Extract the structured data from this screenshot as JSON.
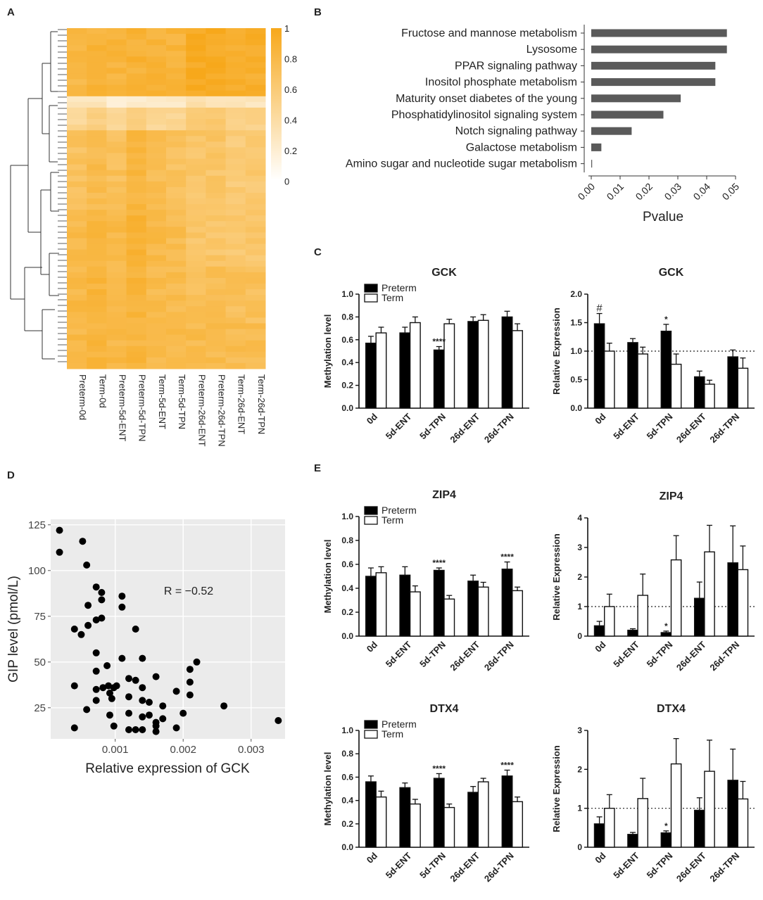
{
  "colors": {
    "heat_high": "#f7a81b",
    "heat_low": "#ffffff",
    "bar_dark": "#5a5a5a",
    "preterm": "#000000",
    "term": "#ffffff",
    "scatter_bg": "#ebebeb"
  },
  "panels": {
    "A": "A",
    "B": "B",
    "C": "C",
    "D": "D",
    "E": "E"
  },
  "chart_data": [
    {
      "id": "A",
      "type": "heatmap",
      "title": "",
      "columns": [
        "Preterm-0d",
        "Term-0d",
        "Preterm-5d-ENT",
        "Preterm-5d-TPN",
        "Term-5d-ENT",
        "Term-5d-TPN",
        "Preterm-26d-ENT",
        "Preterm-26d-TPN",
        "Term-26d-ENT",
        "Term-26d-TPN"
      ],
      "colorbar": {
        "ticks": [
          "1",
          "0.8",
          "0.6",
          "0.4",
          "0.2",
          "0"
        ],
        "range": [
          0,
          1
        ]
      },
      "row_blocks": [
        {
          "rows": 12,
          "values": [
            0.82,
            0.86,
            0.85,
            0.88,
            0.86,
            0.86,
            0.97,
            0.97,
            0.92,
            0.92
          ]
        },
        {
          "rows": 2,
          "values": [
            0.28,
            0.3,
            0.22,
            0.25,
            0.24,
            0.22,
            0.34,
            0.34,
            0.26,
            0.28
          ]
        },
        {
          "rows": 4,
          "values": [
            0.45,
            0.52,
            0.48,
            0.58,
            0.48,
            0.46,
            0.58,
            0.6,
            0.55,
            0.52
          ]
        },
        {
          "rows": 14,
          "values": [
            0.7,
            0.78,
            0.72,
            0.82,
            0.74,
            0.7,
            0.66,
            0.66,
            0.6,
            0.62
          ]
        },
        {
          "rows": 10,
          "values": [
            0.78,
            0.84,
            0.8,
            0.88,
            0.8,
            0.76,
            0.66,
            0.66,
            0.62,
            0.64
          ]
        },
        {
          "rows": 10,
          "values": [
            0.8,
            0.84,
            0.8,
            0.86,
            0.78,
            0.76,
            0.74,
            0.74,
            0.72,
            0.72
          ]
        },
        {
          "rows": 8,
          "values": [
            0.8,
            0.84,
            0.8,
            0.84,
            0.8,
            0.78,
            0.78,
            0.78,
            0.76,
            0.76
          ]
        }
      ]
    },
    {
      "id": "B",
      "type": "bar",
      "orientation": "horizontal",
      "categories": [
        "Fructose and mannose metabolism",
        "Lysosome",
        "PPAR signaling pathway",
        "Inositol phosphate metabolism",
        "Maturity onset diabetes of the young",
        "Phosphatidylinositol signaling system",
        "Notch signaling pathway",
        "Galactose metabolism",
        "Amino sugar and nucleotide sugar metabolism"
      ],
      "values": [
        0.047,
        0.047,
        0.043,
        0.043,
        0.031,
        0.025,
        0.014,
        0.0035,
        0.0003
      ],
      "xlabel": "Pvalue",
      "xticks": [
        "0.00",
        "0.01",
        "0.02",
        "0.03",
        "0.04",
        "0.05"
      ],
      "xlim": [
        0,
        0.05
      ]
    },
    {
      "id": "C-meth",
      "type": "bar",
      "title": "GCK",
      "ylabel": "Methylation level",
      "categories": [
        "0d",
        "5d-ENT",
        "5d-TPN",
        "26d-ENT",
        "26d-TPN"
      ],
      "legend": [
        "Preterm",
        "Term"
      ],
      "series": [
        {
          "name": "Preterm",
          "values": [
            0.57,
            0.66,
            0.51,
            0.76,
            0.8
          ],
          "errors": [
            0.06,
            0.05,
            0.03,
            0.04,
            0.05
          ]
        },
        {
          "name": "Term",
          "values": [
            0.66,
            0.75,
            0.74,
            0.77,
            0.68
          ],
          "errors": [
            0.05,
            0.05,
            0.04,
            0.05,
            0.06
          ]
        }
      ],
      "yticks": [
        "0.0",
        "0.2",
        "0.4",
        "0.6",
        "0.8",
        "1.0"
      ],
      "ylim": [
        0,
        1.0
      ],
      "annotations": [
        {
          "category": "5d-TPN",
          "series": "Preterm",
          "text": "****"
        }
      ]
    },
    {
      "id": "C-expr",
      "type": "bar",
      "title": "GCK",
      "ylabel": "Relative Expression",
      "categories": [
        "0d",
        "5d-ENT",
        "5d-TPN",
        "26d-ENT",
        "26d-TPN"
      ],
      "series": [
        {
          "name": "Preterm",
          "values": [
            1.48,
            1.15,
            1.35,
            0.55,
            0.9
          ],
          "errors": [
            0.18,
            0.07,
            0.12,
            0.1,
            0.12
          ]
        },
        {
          "name": "Term",
          "values": [
            1.0,
            0.95,
            0.77,
            0.42,
            0.7
          ],
          "errors": [
            0.14,
            0.12,
            0.18,
            0.07,
            0.18
          ]
        }
      ],
      "yticks": [
        "0.0",
        "0.5",
        "1.0",
        "1.5",
        "2.0"
      ],
      "ylim": [
        0,
        2.0
      ],
      "reference_line": 1.0,
      "annotations": [
        {
          "category": "0d",
          "series": "Preterm",
          "text": "#"
        },
        {
          "category": "5d-TPN",
          "series": "Preterm",
          "text": "*"
        }
      ]
    },
    {
      "id": "D",
      "type": "scatter",
      "xlabel": "Relative expression of GCK",
      "ylabel": "GIP level (pmol/L)",
      "annotation": "R = −0.52",
      "xlim": [
        5e-05,
        0.0035
      ],
      "ylim": [
        8,
        128
      ],
      "xticks": [
        0.001,
        0.002,
        0.003
      ],
      "xtick_labels": [
        "0.001",
        "0.002",
        "0.003"
      ],
      "yticks": [
        25,
        50,
        75,
        100,
        125
      ],
      "ytick_labels": [
        "25",
        "50",
        "75",
        "100",
        "125"
      ],
      "points": [
        [
          0.00018,
          122
        ],
        [
          0.00018,
          110
        ],
        [
          0.00052,
          116
        ],
        [
          0.00058,
          103
        ],
        [
          0.00072,
          91
        ],
        [
          0.0008,
          88
        ],
        [
          0.0008,
          84
        ],
        [
          0.0006,
          81
        ],
        [
          0.0011,
          86
        ],
        [
          0.0011,
          80
        ],
        [
          0.00072,
          73
        ],
        [
          0.0008,
          74
        ],
        [
          0.0006,
          70
        ],
        [
          0.0004,
          68
        ],
        [
          0.0005,
          65
        ],
        [
          0.0013,
          68
        ],
        [
          0.00072,
          55
        ],
        [
          0.0011,
          52
        ],
        [
          0.0014,
          52
        ],
        [
          0.00088,
          48
        ],
        [
          0.0012,
          41
        ],
        [
          0.0013,
          40
        ],
        [
          0.0016,
          42
        ],
        [
          0.0021,
          46
        ],
        [
          0.0022,
          50
        ],
        [
          0.0021,
          39
        ],
        [
          0.0021,
          32
        ],
        [
          0.00072,
          45
        ],
        [
          0.0004,
          37
        ],
        [
          0.00072,
          35
        ],
        [
          0.00082,
          36
        ],
        [
          0.0009,
          37
        ],
        [
          0.00092,
          33
        ],
        [
          0.00098,
          36
        ],
        [
          0.00102,
          37
        ],
        [
          0.0012,
          31
        ],
        [
          0.0014,
          36
        ],
        [
          0.0014,
          29
        ],
        [
          0.0015,
          28
        ],
        [
          0.0019,
          34
        ],
        [
          0.0017,
          26
        ],
        [
          0.0026,
          26
        ],
        [
          0.00058,
          24
        ],
        [
          0.00072,
          29
        ],
        [
          0.00095,
          30
        ],
        [
          0.0012,
          22
        ],
        [
          0.0014,
          20
        ],
        [
          0.0015,
          21
        ],
        [
          0.0016,
          17
        ],
        [
          0.0017,
          19
        ],
        [
          0.002,
          22
        ],
        [
          0.0016,
          15
        ],
        [
          0.0019,
          14
        ],
        [
          0.0016,
          12
        ],
        [
          0.0004,
          14
        ],
        [
          0.00092,
          21
        ],
        [
          0.00098,
          15
        ],
        [
          0.0012,
          13
        ],
        [
          0.0013,
          13
        ],
        [
          0.0014,
          13
        ],
        [
          0.0034,
          18
        ]
      ]
    },
    {
      "id": "E-zip4-meth",
      "type": "bar",
      "title": "ZIP4",
      "ylabel": "Methylation level",
      "categories": [
        "0d",
        "5d-ENT",
        "5d-TPN",
        "26d-ENT",
        "26d-TPN"
      ],
      "legend": [
        "Preterm",
        "Term"
      ],
      "series": [
        {
          "name": "Preterm",
          "values": [
            0.5,
            0.51,
            0.55,
            0.46,
            0.56
          ],
          "errors": [
            0.07,
            0.07,
            0.02,
            0.05,
            0.06
          ]
        },
        {
          "name": "Term",
          "values": [
            0.53,
            0.37,
            0.31,
            0.41,
            0.38
          ],
          "errors": [
            0.05,
            0.05,
            0.03,
            0.04,
            0.03
          ]
        }
      ],
      "yticks": [
        "0.0",
        "0.2",
        "0.4",
        "0.6",
        "0.8",
        "1.0"
      ],
      "ylim": [
        0,
        1.0
      ],
      "annotations": [
        {
          "category": "5d-TPN",
          "series": "Preterm",
          "text": "****"
        },
        {
          "category": "26d-TPN",
          "series": "Preterm",
          "text": "****"
        }
      ]
    },
    {
      "id": "E-zip4-expr",
      "type": "bar",
      "title": "ZIP4",
      "ylabel": "Relative Expression",
      "categories": [
        "0d",
        "5d-ENT",
        "5d-TPN",
        "26d-ENT",
        "26d-TPN"
      ],
      "series": [
        {
          "name": "Preterm",
          "values": [
            0.35,
            0.2,
            0.12,
            1.28,
            2.48
          ],
          "errors": [
            0.15,
            0.05,
            0.05,
            0.55,
            1.25
          ]
        },
        {
          "name": "Term",
          "values": [
            1.0,
            1.38,
            2.58,
            2.85,
            2.25
          ],
          "errors": [
            0.42,
            0.72,
            0.82,
            0.9,
            0.8
          ]
        }
      ],
      "yticks": [
        "0",
        "1",
        "2",
        "3",
        "4"
      ],
      "ylim": [
        0,
        4
      ],
      "reference_line": 1.0,
      "annotations": [
        {
          "category": "5d-TPN",
          "series": "Preterm",
          "text": "*"
        }
      ]
    },
    {
      "id": "E-dtx4-meth",
      "type": "bar",
      "title": "DTX4",
      "ylabel": "Methylation level",
      "categories": [
        "0d",
        "5d-ENT",
        "5d-TPN",
        "26d-ENT",
        "26d-TPN"
      ],
      "legend": [
        "Preterm",
        "Term"
      ],
      "series": [
        {
          "name": "Preterm",
          "values": [
            0.56,
            0.51,
            0.59,
            0.47,
            0.61
          ],
          "errors": [
            0.05,
            0.04,
            0.04,
            0.05,
            0.05
          ]
        },
        {
          "name": "Term",
          "values": [
            0.43,
            0.37,
            0.34,
            0.56,
            0.39
          ],
          "errors": [
            0.05,
            0.04,
            0.03,
            0.03,
            0.04
          ]
        }
      ],
      "yticks": [
        "0.0",
        "0.2",
        "0.4",
        "0.6",
        "0.8",
        "1.0"
      ],
      "ylim": [
        0,
        1.0
      ],
      "annotations": [
        {
          "category": "5d-TPN",
          "series": "Preterm",
          "text": "****"
        },
        {
          "category": "26d-TPN",
          "series": "Preterm",
          "text": "****"
        }
      ]
    },
    {
      "id": "E-dtx4-expr",
      "type": "bar",
      "title": "DTX4",
      "ylabel": "Relative Expression",
      "categories": [
        "0d",
        "5d-ENT",
        "5d-TPN",
        "26d-ENT",
        "26d-TPN"
      ],
      "series": [
        {
          "name": "Preterm",
          "values": [
            0.6,
            0.33,
            0.37,
            0.95,
            1.72
          ],
          "errors": [
            0.18,
            0.05,
            0.05,
            0.32,
            0.8
          ]
        },
        {
          "name": "Term",
          "values": [
            1.0,
            1.25,
            2.14,
            1.95,
            1.24
          ],
          "errors": [
            0.35,
            0.52,
            0.65,
            0.8,
            0.45
          ]
        }
      ],
      "yticks": [
        "0",
        "1",
        "2",
        "3"
      ],
      "ylim": [
        0,
        3
      ],
      "reference_line": 1.0,
      "annotations": [
        {
          "category": "5d-TPN",
          "series": "Preterm",
          "text": "*"
        }
      ]
    }
  ]
}
